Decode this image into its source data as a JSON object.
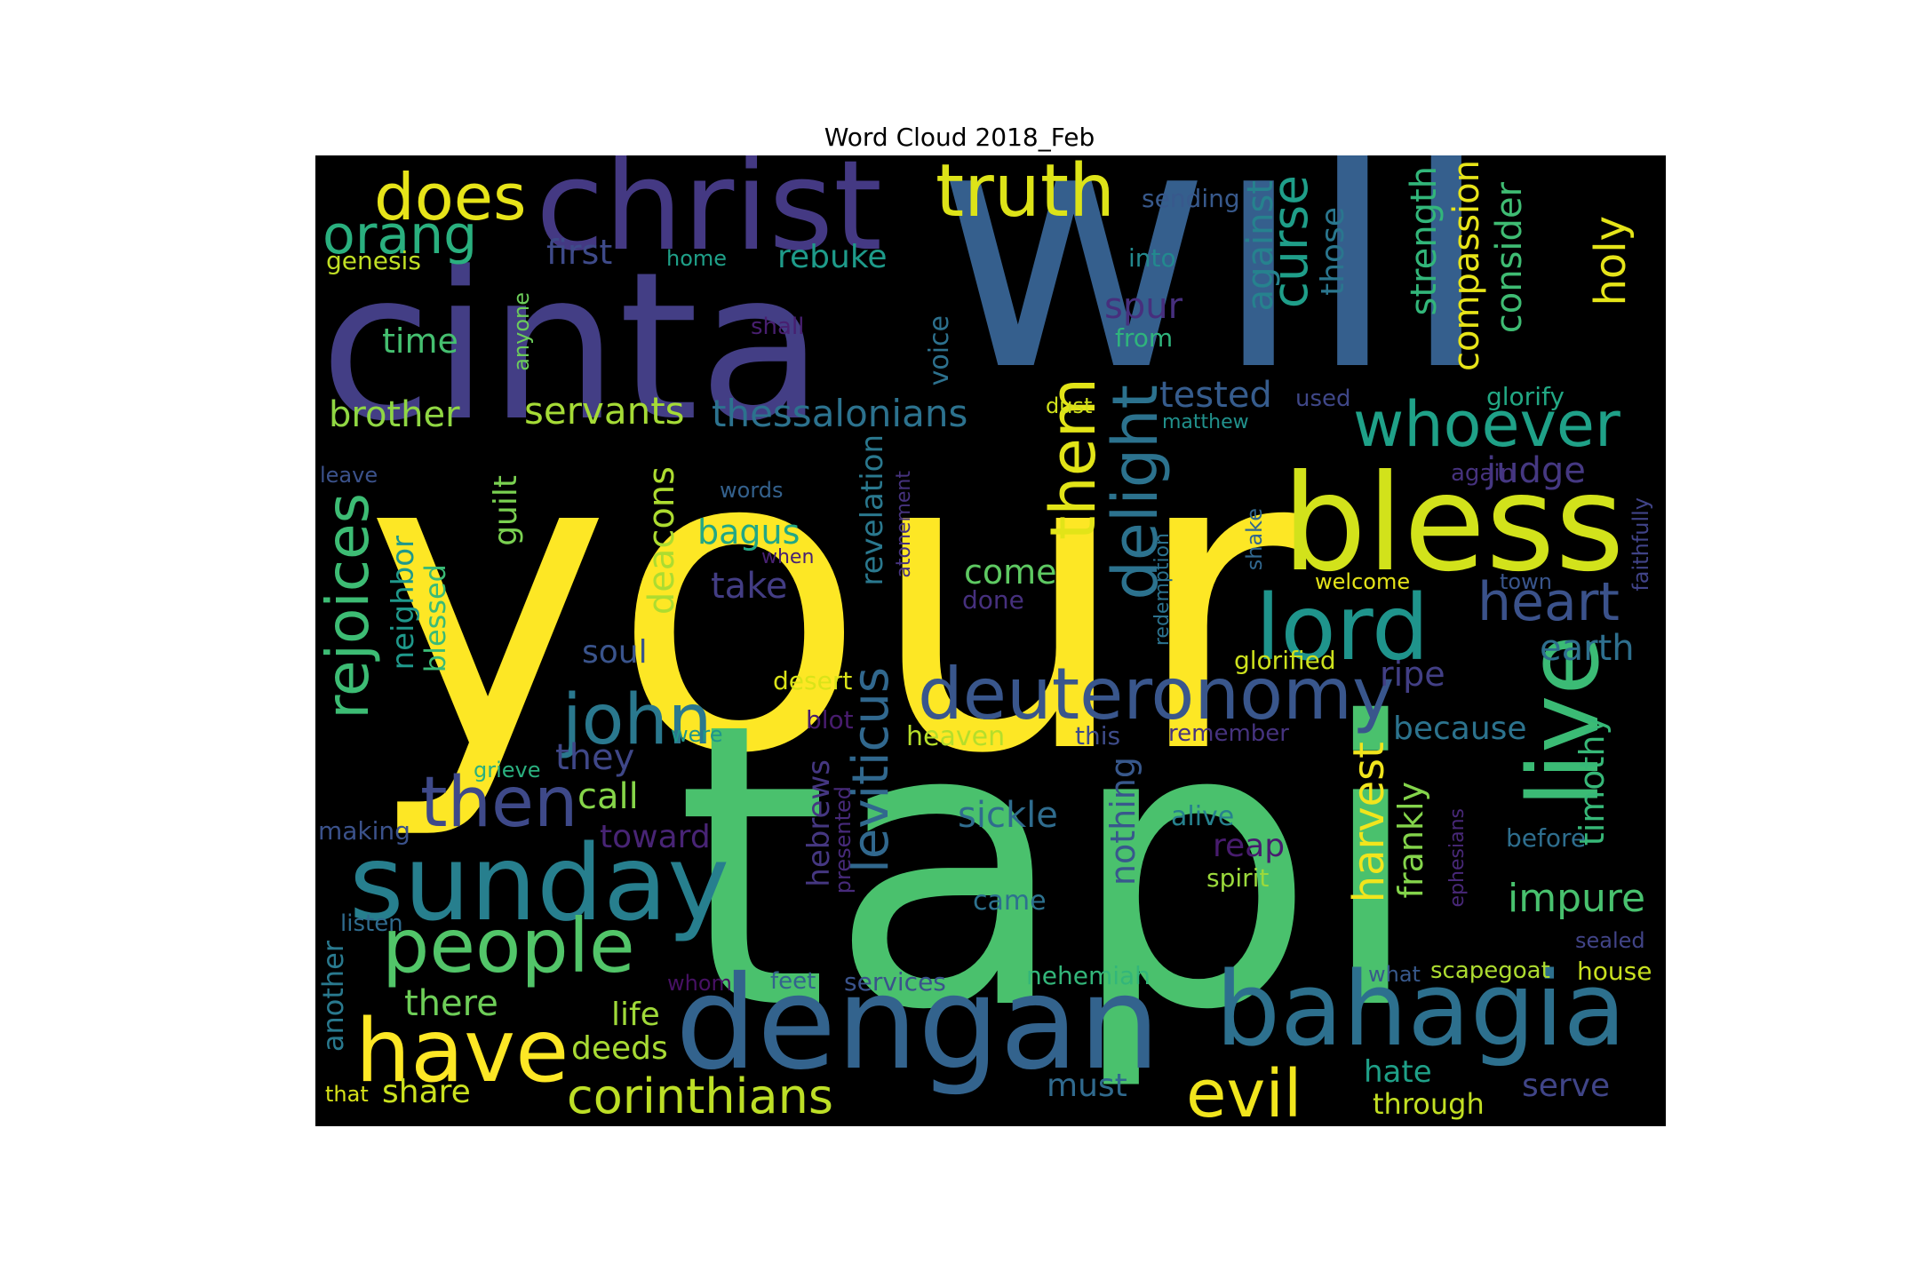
{
  "figure": {
    "title": "Word Cloud 2018_Feb",
    "background": "#000000",
    "colormap": "viridis"
  },
  "words": [
    {
      "text": "your",
      "color": "#fde725"
    },
    {
      "text": "tapi",
      "color": "#4ac16d"
    },
    {
      "text": "will",
      "color": "#355f8d"
    },
    {
      "text": "cinta",
      "color": "#433e85"
    },
    {
      "text": "christ",
      "color": "#443983"
    },
    {
      "text": "dengan",
      "color": "#33638d"
    },
    {
      "text": "bahagia",
      "color": "#2d708e"
    },
    {
      "text": "bless",
      "color": "#d2e21b"
    },
    {
      "text": "sunday",
      "color": "#277f8e"
    },
    {
      "text": "lord",
      "color": "#1f948c"
    },
    {
      "text": "live",
      "color": "#3bbb75"
    },
    {
      "text": "deuteronomy",
      "color": "#39568c"
    },
    {
      "text": "truth",
      "color": "#dde318"
    },
    {
      "text": "people",
      "color": "#52c569"
    },
    {
      "text": "have",
      "color": "#fde725"
    },
    {
      "text": "john",
      "color": "#2a788e"
    },
    {
      "text": "then",
      "color": "#3e4989"
    },
    {
      "text": "evil",
      "color": "#f1e51d"
    },
    {
      "text": "whoever",
      "color": "#1fa188"
    },
    {
      "text": "heart",
      "color": "#3b528b"
    },
    {
      "text": "them",
      "color": "#e2e418"
    },
    {
      "text": "delight",
      "color": "#2c728e"
    },
    {
      "text": "does",
      "color": "#e7e419"
    },
    {
      "text": "orang",
      "color": "#2ab07f"
    },
    {
      "text": "corinthians",
      "color": "#bddf26"
    },
    {
      "text": "rejoices",
      "color": "#3dbc74"
    },
    {
      "text": "leviticus",
      "color": "#31688e"
    },
    {
      "text": "servants",
      "color": "#a5db36"
    },
    {
      "text": "thessalonians",
      "color": "#2c728e"
    },
    {
      "text": "curse",
      "color": "#1f9e89"
    },
    {
      "text": "holy",
      "color": "#e5e419"
    },
    {
      "text": "harvest",
      "color": "#f1e51d"
    },
    {
      "text": "deacons",
      "color": "#addc30"
    },
    {
      "text": "sickle",
      "color": "#2f6c8e"
    },
    {
      "text": "impure",
      "color": "#48c16e"
    },
    {
      "text": "against",
      "color": "#26828e"
    },
    {
      "text": "strength",
      "color": "#32b67a"
    },
    {
      "text": "compassion",
      "color": "#e7e419"
    },
    {
      "text": "consider",
      "color": "#3fbc73"
    },
    {
      "text": "those",
      "color": "#2a768e"
    },
    {
      "text": "nothing",
      "color": "#38588c"
    },
    {
      "text": "brother",
      "color": "#90d743"
    },
    {
      "text": "first",
      "color": "#3e4a89"
    },
    {
      "text": "rebuke",
      "color": "#1e9b8a"
    },
    {
      "text": "time",
      "color": "#45bf70"
    },
    {
      "text": "spur",
      "color": "#472f7d"
    },
    {
      "text": "tested",
      "color": "#365c8d"
    },
    {
      "text": "judge",
      "color": "#453882"
    },
    {
      "text": "earth",
      "color": "#2e6f8e"
    },
    {
      "text": "ripe",
      "color": "#423f85"
    },
    {
      "text": "because",
      "color": "#2c738e"
    },
    {
      "text": "timothy",
      "color": "#37b878"
    },
    {
      "text": "frankly",
      "color": "#84d44b"
    },
    {
      "text": "reap",
      "color": "#481c6e"
    },
    {
      "text": "come",
      "color": "#5ec962"
    },
    {
      "text": "take",
      "color": "#433d84"
    },
    {
      "text": "bagus",
      "color": "#22a785"
    },
    {
      "text": "revelation",
      "color": "#2a788e"
    },
    {
      "text": "hebrews",
      "color": "#453781"
    },
    {
      "text": "call",
      "color": "#86d549"
    },
    {
      "text": "they",
      "color": "#3f4788"
    },
    {
      "text": "toward",
      "color": "#482475"
    },
    {
      "text": "soul",
      "color": "#3a548c"
    },
    {
      "text": "guilt",
      "color": "#7ad151"
    },
    {
      "text": "neighbor",
      "color": "#1f988b"
    },
    {
      "text": "blessed",
      "color": "#3aba76"
    },
    {
      "text": "there",
      "color": "#6ece58"
    },
    {
      "text": "life",
      "color": "#a0da39"
    },
    {
      "text": "deeds",
      "color": "#a8db34"
    },
    {
      "text": "share",
      "color": "#cae11f"
    },
    {
      "text": "another",
      "color": "#29798e"
    },
    {
      "text": "must",
      "color": "#306a8e"
    },
    {
      "text": "hate",
      "color": "#1fa088"
    },
    {
      "text": "serve",
      "color": "#404588"
    },
    {
      "text": "through",
      "color": "#c2df23"
    },
    {
      "text": "house",
      "color": "#c8e020"
    },
    {
      "text": "scapegoat",
      "color": "#addc30"
    },
    {
      "text": "what",
      "color": "#38598c"
    },
    {
      "text": "sealed",
      "color": "#414487"
    },
    {
      "text": "before",
      "color": "#2e6e8e"
    },
    {
      "text": "ephesians",
      "color": "#482878"
    },
    {
      "text": "faithfully",
      "color": "#404387"
    },
    {
      "text": "town",
      "color": "#39558c"
    },
    {
      "text": "again",
      "color": "#46327e"
    },
    {
      "text": "glorify",
      "color": "#22a884"
    },
    {
      "text": "glorified",
      "color": "#cde11d"
    },
    {
      "text": "welcome",
      "color": "#e5e419"
    },
    {
      "text": "shake",
      "color": "#31678e"
    },
    {
      "text": "redemption",
      "color": "#2c728e"
    },
    {
      "text": "remember",
      "color": "#46337f"
    },
    {
      "text": "this",
      "color": "#3e4c8a"
    },
    {
      "text": "alive",
      "color": "#26818e"
    },
    {
      "text": "spirit",
      "color": "#9bd93c"
    },
    {
      "text": "came",
      "color": "#2d718e"
    },
    {
      "text": "nehemiah",
      "color": "#33b67a"
    },
    {
      "text": "services",
      "color": "#3a538b"
    },
    {
      "text": "feet",
      "color": "#33638d"
    },
    {
      "text": "whom",
      "color": "#471164"
    },
    {
      "text": "heaven",
      "color": "#b5de2b"
    },
    {
      "text": "done",
      "color": "#46307e"
    },
    {
      "text": "atonement",
      "color": "#46327e"
    },
    {
      "text": "desert",
      "color": "#dae319"
    },
    {
      "text": "blot",
      "color": "#481c6e"
    },
    {
      "text": "were",
      "color": "#1f968b"
    },
    {
      "text": "grieve",
      "color": "#2ab07f"
    },
    {
      "text": "making",
      "color": "#3b528b"
    },
    {
      "text": "listen",
      "color": "#2f6b8e"
    },
    {
      "text": "that",
      "color": "#d8e219"
    },
    {
      "text": "presented",
      "color": "#472a7a"
    },
    {
      "text": "when",
      "color": "#482173"
    },
    {
      "text": "words",
      "color": "#34618d"
    },
    {
      "text": "leave",
      "color": "#3b528b"
    },
    {
      "text": "matthew",
      "color": "#21918c"
    },
    {
      "text": "dust",
      "color": "#d0e11c"
    },
    {
      "text": "used",
      "color": "#3f4788"
    },
    {
      "text": "voice",
      "color": "#2d718e"
    },
    {
      "text": "from",
      "color": "#2fb47c"
    },
    {
      "text": "into",
      "color": "#23898e"
    },
    {
      "text": "sending",
      "color": "#38598c"
    },
    {
      "text": "home",
      "color": "#1fa088"
    },
    {
      "text": "shall",
      "color": "#481f70"
    },
    {
      "text": "anyone",
      "color": "#6ccd5a"
    },
    {
      "text": "genesis",
      "color": "#c0df25"
    }
  ]
}
